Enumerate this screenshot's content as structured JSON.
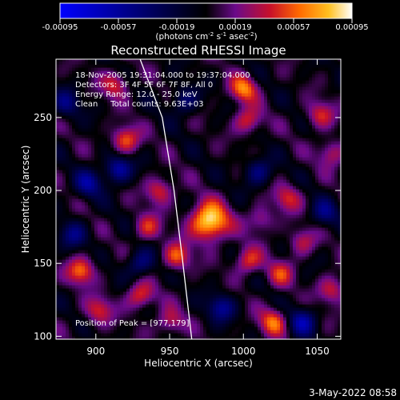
{
  "colorbar": {
    "ticks": [
      "-0.00095",
      "-0.00057",
      "-0.00019",
      "0.00019",
      "0.00057",
      "0.00095"
    ],
    "unit_text": "(photons cm",
    "unit_sup1": "-2",
    "unit_mid1": " s",
    "unit_sup2": "-1",
    "unit_mid2": " asec",
    "unit_sup3": "-2",
    "unit_end": ")",
    "colors": [
      "#0000ff",
      "#000000",
      "#6a0a8a",
      "#c8102a",
      "#ff6a00",
      "#ffc020",
      "#ffffff"
    ]
  },
  "chart_data": {
    "type": "heatmap",
    "title": "Reconstructed RHESSI Image",
    "xlabel": "Heliocentric X (arcsec)",
    "ylabel": "Heliocentric Y (arcsec)",
    "xlim": [
      873,
      1066
    ],
    "ylim": [
      98,
      290
    ],
    "xticks": [
      900,
      950,
      1000,
      1050
    ],
    "yticks": [
      100,
      150,
      200,
      250
    ],
    "value_range": [
      -0.00095,
      0.00095
    ],
    "peak_position": [
      977,
      179
    ],
    "limb_curve": [
      [
        930,
        290
      ],
      [
        945,
        250
      ],
      [
        953,
        200
      ],
      [
        959,
        150
      ],
      [
        965,
        98
      ]
    ],
    "sources": [
      {
        "x": 977,
        "y": 179,
        "value": 0.00095
      },
      {
        "x": 920,
        "y": 235,
        "value": 0.00058
      },
      {
        "x": 913,
        "y": 273,
        "value": 0.00045
      },
      {
        "x": 1000,
        "y": 270,
        "value": 0.00062
      },
      {
        "x": 1003,
        "y": 248,
        "value": 0.00048
      },
      {
        "x": 1052,
        "y": 252,
        "value": 0.00045
      },
      {
        "x": 1060,
        "y": 226,
        "value": 0.0004
      },
      {
        "x": 1030,
        "y": 195,
        "value": 0.00042
      },
      {
        "x": 1012,
        "y": 180,
        "value": 0.00035
      },
      {
        "x": 943,
        "y": 200,
        "value": 0.00048
      },
      {
        "x": 935,
        "y": 175,
        "value": 0.00042
      },
      {
        "x": 955,
        "y": 155,
        "value": 0.00055
      },
      {
        "x": 1003,
        "y": 152,
        "value": 0.0005
      },
      {
        "x": 1025,
        "y": 143,
        "value": 0.00042
      },
      {
        "x": 890,
        "y": 145,
        "value": 0.0006
      },
      {
        "x": 902,
        "y": 118,
        "value": 0.00045
      },
      {
        "x": 930,
        "y": 128,
        "value": 0.00052
      },
      {
        "x": 950,
        "y": 110,
        "value": 0.0004
      },
      {
        "x": 1020,
        "y": 110,
        "value": 0.00058
      },
      {
        "x": 1060,
        "y": 132,
        "value": 0.00045
      },
      {
        "x": 1040,
        "y": 165,
        "value": 0.00038
      }
    ],
    "negative_regions": [
      {
        "x": 880,
        "y": 260,
        "value": -0.0004
      },
      {
        "x": 895,
        "y": 205,
        "value": -0.0005
      },
      {
        "x": 915,
        "y": 215,
        "value": -0.0006
      },
      {
        "x": 1010,
        "y": 213,
        "value": -0.00045
      },
      {
        "x": 930,
        "y": 150,
        "value": -0.00045
      },
      {
        "x": 885,
        "y": 170,
        "value": -0.0004
      },
      {
        "x": 985,
        "y": 120,
        "value": -0.0005
      },
      {
        "x": 1040,
        "y": 110,
        "value": -0.00055
      },
      {
        "x": 1055,
        "y": 185,
        "value": -0.0004
      },
      {
        "x": 960,
        "y": 262,
        "value": -0.0004
      }
    ]
  },
  "annotations": {
    "time_range": "18-Nov-2005 19:31:04.000 to 19:37:04.000",
    "detectors": "Detectors: 3F 4F 5F 6F 7F 8F, All 0",
    "energy": "Energy Range: 12.0 - 25.0 keV",
    "clean": "Clean     Total counts: 9.63E+03",
    "peak": "Position of Peak = [977,179]"
  },
  "footer": {
    "date": "3-May-2022 08:58"
  }
}
